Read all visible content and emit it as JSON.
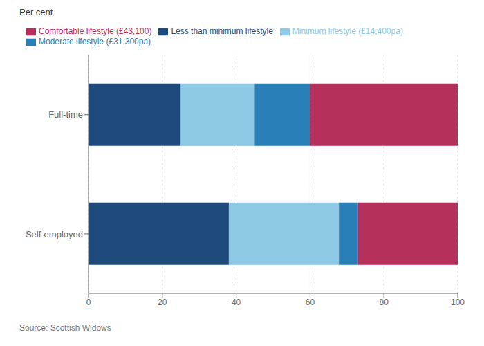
{
  "chart_data": {
    "type": "bar",
    "orientation": "horizontal",
    "stacked": true,
    "xlabel": "Per cent",
    "annotation": "Source: Scottish Widows",
    "categories": [
      "Full-time",
      "Self-employed"
    ],
    "series": [
      {
        "name": "Less than minimum lifestyle",
        "color": "#1f4a7d",
        "values": [
          25,
          38
        ]
      },
      {
        "name": "Minimum lifestyle (£14,400pa)",
        "color": "#8ecae6",
        "values": [
          20,
          30
        ]
      },
      {
        "name": "Moderate lifestyle (£31,300pa)",
        "color": "#2980b9",
        "values": [
          15,
          5
        ]
      },
      {
        "name": "Comfortable lifestyle (£43,100)",
        "color": "#b5305a",
        "values": [
          40,
          27
        ]
      }
    ],
    "xlim": [
      0,
      100
    ],
    "xticks": [
      0,
      20,
      40,
      60,
      80,
      100
    ],
    "grid": true,
    "legend": "top"
  }
}
